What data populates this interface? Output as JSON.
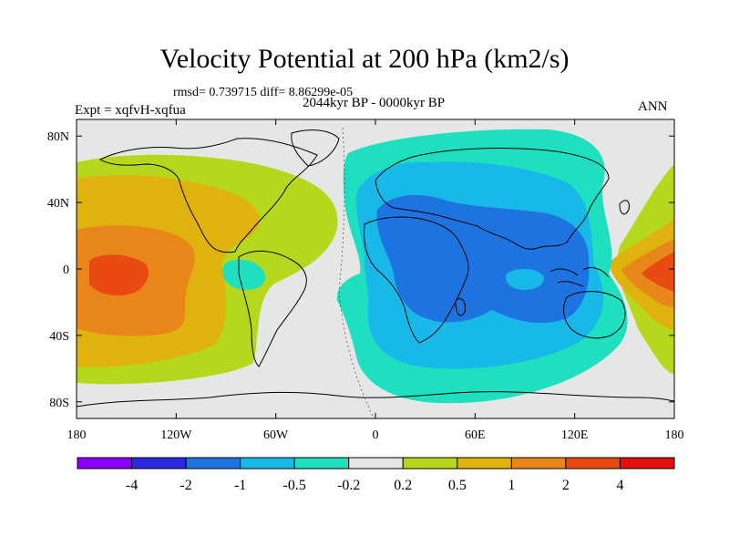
{
  "header": {
    "title": "Velocity Potential at 200 hPa (km2/s)",
    "stats": "rmsd= 0.739715 diff= 8.86299e-05",
    "expt": "Expt = xqfvH-xqfua",
    "period": "2044kyr BP - 0000kyr BP",
    "season": "ANN"
  },
  "chart_data": {
    "type": "heatmap",
    "title": "Velocity Potential at 200 hPa (km2/s)",
    "xlabel": "",
    "ylabel": "",
    "xlim": [
      -180,
      180
    ],
    "ylim": [
      -90,
      90
    ],
    "x_ticks": [
      {
        "value": -180,
        "label": "180"
      },
      {
        "value": -120,
        "label": "120W"
      },
      {
        "value": -60,
        "label": "60W"
      },
      {
        "value": 0,
        "label": "0"
      },
      {
        "value": 60,
        "label": "60E"
      },
      {
        "value": 120,
        "label": "120E"
      },
      {
        "value": 180,
        "label": "180"
      }
    ],
    "y_ticks": [
      {
        "value": 80,
        "label": "80N"
      },
      {
        "value": 40,
        "label": "40N"
      },
      {
        "value": 0,
        "label": "0"
      },
      {
        "value": -40,
        "label": "40S"
      },
      {
        "value": -80,
        "label": "80S"
      }
    ],
    "colorbar": {
      "colors": [
        "#8a00ff",
        "#2a28e0",
        "#1d74e0",
        "#18b8e8",
        "#1ee0c0",
        "#e6e6e6",
        "#b6d81c",
        "#e0b20e",
        "#e8861a",
        "#e84a12",
        "#e41010"
      ],
      "labels": [
        "-4",
        "-2",
        "-1",
        "-0.5",
        "-0.2",
        "0.2",
        "0.5",
        "1",
        "2",
        "4"
      ]
    },
    "centers": [
      {
        "name": "divergent-center-africa-asia",
        "lon": 40,
        "lat": 15,
        "sign": "negative",
        "min_level": "-1"
      },
      {
        "name": "convergent-center-east-pacific",
        "lon": -155,
        "lat": 0,
        "sign": "positive",
        "max_level": "4"
      },
      {
        "name": "convergent-center-west-pacific",
        "lon": 170,
        "lat": 0,
        "sign": "positive",
        "max_level": "2"
      },
      {
        "name": "divergent-center-south-america",
        "lon": -50,
        "lat": -5,
        "sign": "negative",
        "min_level": "-0.2"
      }
    ]
  }
}
